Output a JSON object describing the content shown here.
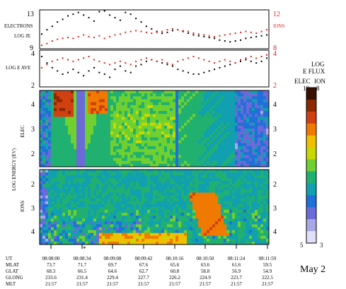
{
  "chart_data": [
    {
      "type": "scatter",
      "panel": "flux",
      "left_labels": {
        "top": "ELECTRONS",
        "bottom": "LOG JE"
      },
      "left_ticks": [
        "13",
        "9"
      ],
      "right_label": "IONS",
      "right_ticks": [
        "12",
        "8"
      ],
      "series": [
        {
          "name": "ELECTRONS",
          "color": "#000000",
          "values": [
            10.7,
            11.2,
            11.6,
            12.1,
            12.4,
            12.8,
            13.0,
            13.2,
            12.9,
            12.6,
            12.2,
            13.3,
            13.4,
            12.9,
            12.6,
            12.3,
            13.2,
            13.0,
            12.5,
            12.1,
            11.6,
            11.3,
            11.0,
            10.8,
            10.9,
            11.1,
            11.2,
            11.0,
            10.8,
            10.6,
            10.5,
            10.4,
            10.3,
            10.2,
            10.0,
            9.9,
            9.8,
            9.9,
            10.0,
            10.2,
            10.3,
            10.4,
            10.5,
            10.6
          ]
        },
        {
          "name": "IONS",
          "color": "#e02020",
          "values": [
            9.4,
            9.6,
            9.9,
            10.1,
            10.2,
            10.3,
            10.2,
            10.4,
            10.6,
            10.4,
            10.3,
            10.5,
            10.2,
            10.4,
            10.6,
            10.7,
            10.9,
            11.0,
            11.1,
            11.0,
            10.9,
            10.8,
            10.9,
            11.0,
            11.2,
            11.3,
            11.2,
            11.1,
            11.0,
            10.8,
            10.7,
            10.6,
            10.5,
            10.4,
            10.5,
            10.6,
            10.7,
            10.8,
            10.9,
            11.0,
            10.9,
            10.8,
            11.0,
            11.2
          ]
        }
      ]
    },
    {
      "type": "scatter",
      "panel": "energy",
      "left_label": "LOG E AVE",
      "left_ticks": [
        "4",
        "2"
      ],
      "right_ticks": [
        "4",
        "2"
      ],
      "series": [
        {
          "name": "ELECTRONS",
          "color": "#000000",
          "values": [
            3.9,
            3.5,
            3.2,
            3.0,
            2.8,
            2.9,
            3.1,
            2.9,
            2.7,
            3.0,
            3.2,
            2.9,
            2.8,
            2.6,
            3.1,
            3.3,
            3.0,
            2.9,
            3.3,
            3.4,
            3.6,
            3.7,
            3.6,
            3.5,
            3.4,
            3.3,
            3.1,
            3.0,
            2.9,
            2.8,
            2.8,
            2.9,
            3.0,
            3.1,
            3.2,
            3.3,
            3.4,
            3.5,
            3.6,
            3.7,
            3.6,
            3.5,
            3.6,
            3.8
          ]
        },
        {
          "name": "IONS",
          "color": "#e02020",
          "values": [
            3.2,
            3.4,
            3.6,
            3.7,
            3.8,
            3.7,
            3.6,
            3.7,
            3.8,
            3.9,
            3.7,
            3.6,
            3.5,
            3.4,
            3.5,
            3.6,
            3.5,
            3.4,
            3.6,
            3.7,
            3.8,
            3.7,
            3.6,
            3.7,
            3.5,
            3.4,
            3.6,
            3.7,
            3.8,
            3.9,
            3.8,
            3.7,
            3.6,
            3.5,
            3.6,
            3.7,
            3.6,
            3.5,
            3.7,
            3.8,
            3.9,
            3.8,
            3.9,
            4.0
          ]
        }
      ]
    },
    {
      "type": "heatmap",
      "panel": "spectrogram",
      "ylabel": "LOG ENERGY (EV)",
      "electron_label": "ELEC",
      "ion_label": "IONS",
      "electron_ticks": [
        "4",
        "3",
        "2"
      ],
      "ion_ticks": [
        "2",
        "3",
        "4"
      ],
      "colorbar": {
        "title_line1": "LOG",
        "title_line2": "E FLUX",
        "col_elec": "ELEC",
        "col_ion": "ION",
        "top_elec": "10",
        "top_ion": "8",
        "bottom_elec": "5",
        "bottom_ion": "3",
        "colors": [
          "#3a0f00",
          "#8a2800",
          "#d04010",
          "#f07a00",
          "#f0c000",
          "#c8d800",
          "#6fd030",
          "#20b070",
          "#10a0b0",
          "#1f70d8",
          "#6a6ad8",
          "#a8a8e8",
          "#e0e0f8"
        ]
      }
    }
  ],
  "footer": {
    "row_labels": [
      "UT",
      "MLAT",
      "GLAT",
      "GLONG",
      "MLT"
    ],
    "columns": [
      [
        "08:08:00",
        "73.7",
        "68.3",
        "233.6",
        "21:57"
      ],
      [
        "08:08:34",
        "71.7",
        "66.5",
        "231.4",
        "21:57"
      ],
      [
        "08:09:08",
        "69.7",
        "64.6",
        "229.4",
        "21:57"
      ],
      [
        "08:09:42",
        "67.6",
        "62.7",
        "227.7",
        "21:57"
      ],
      [
        "08:10:16",
        "65.6",
        "60.8",
        "226.2",
        "21:57"
      ],
      [
        "08:10:50",
        "63.6",
        "58.8",
        "224.9",
        "21:57"
      ],
      [
        "08:11:24",
        "61.6",
        "56.9",
        "223.7",
        "21:57"
      ],
      [
        "08:11:59",
        "59.5",
        "54.9",
        "222.5",
        "21:57"
      ]
    ],
    "markers": [
      "*"
    ],
    "date": "May 2"
  }
}
